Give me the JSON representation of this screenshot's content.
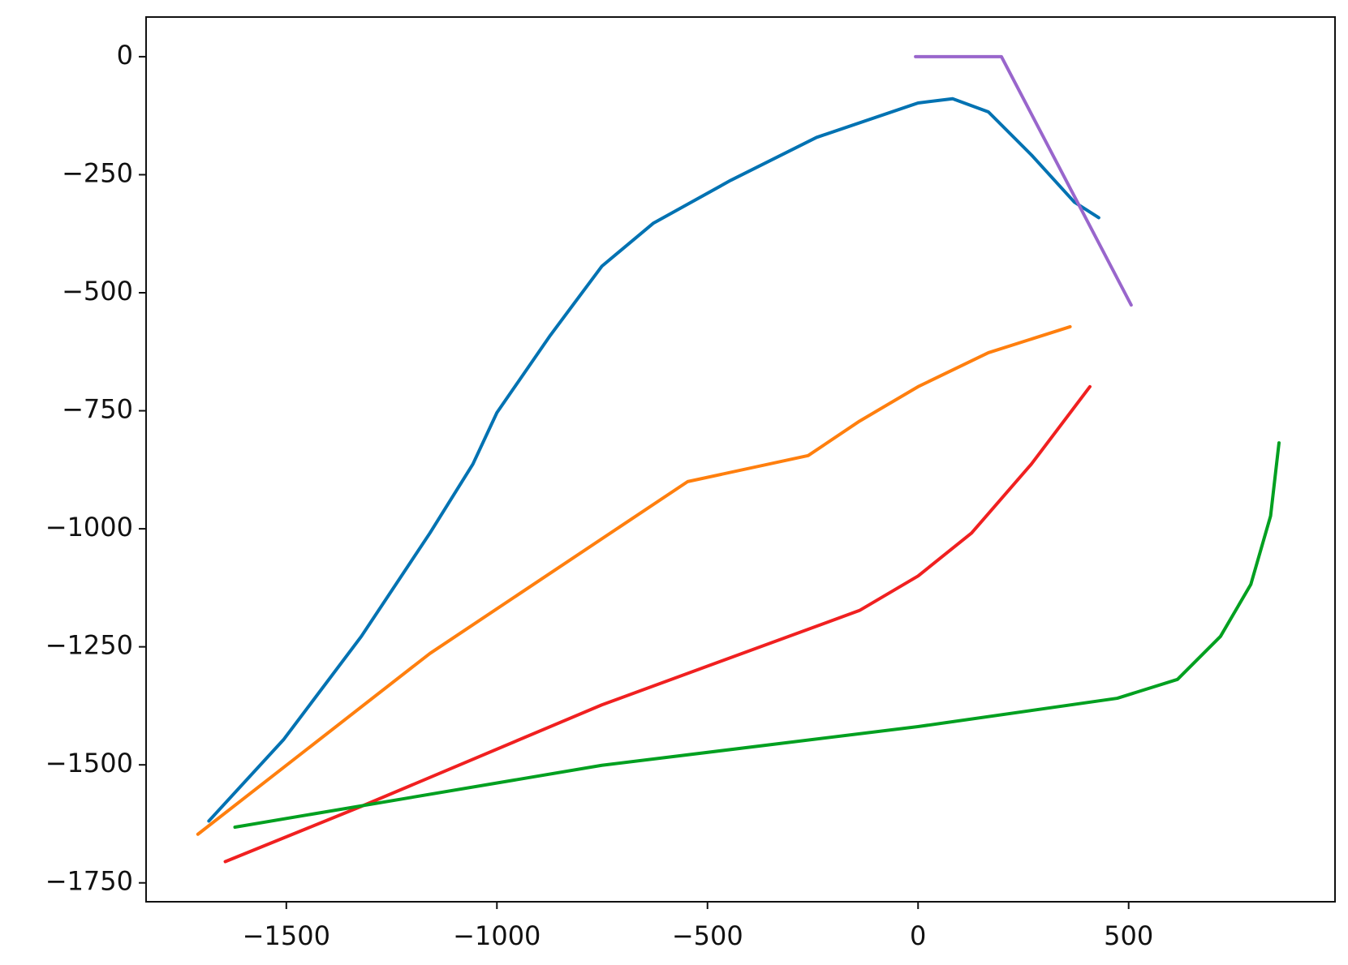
{
  "chart_data": {
    "type": "line",
    "xlim": [
      -1833,
      990
    ],
    "ylim": [
      -1790,
      84
    ],
    "xticks": [
      {
        "value": -1500,
        "label": "−1500"
      },
      {
        "value": -1000,
        "label": "−1000"
      },
      {
        "value": -500,
        "label": "−500"
      },
      0,
      500
    ],
    "yticks": [
      0,
      {
        "value": -250,
        "label": "−250"
      },
      {
        "value": -500,
        "label": "−500"
      },
      {
        "value": -750,
        "label": "−750"
      },
      {
        "value": -1000,
        "label": "−1000"
      },
      {
        "value": -1250,
        "label": "−1250"
      },
      {
        "value": -1500,
        "label": "−1500"
      },
      {
        "value": -1750,
        "label": "−1750"
      }
    ],
    "series": [
      {
        "color": "#0072b2",
        "x": [
          -1684,
          -1506,
          -1322,
          -1159,
          -1057,
          -1000,
          -873,
          -751,
          -629,
          -445,
          -241,
          0,
          82,
          167,
          269,
          371,
          429
        ],
        "values": [
          -1619,
          -1446,
          -1228,
          -1009,
          -863,
          -754,
          -590,
          -444,
          -353,
          -262,
          -171,
          -98,
          -89,
          -117,
          -208,
          -308,
          -341
        ]
      },
      {
        "color": "#ff7f0e",
        "x": [
          -1710,
          -1159,
          -547,
          -261,
          -139,
          0,
          167,
          361
        ],
        "values": [
          -1647,
          -1264,
          -900,
          -845,
          -772,
          -699,
          -627,
          -572
        ]
      },
      {
        "color": "#f02020",
        "x": [
          -1645,
          -1322,
          -751,
          -139,
          0,
          127,
          269,
          408
        ],
        "values": [
          -1705,
          -1588,
          -1373,
          -1173,
          -1100,
          -1009,
          -863,
          -699
        ]
      },
      {
        "color": "#00a020",
        "x": [
          -1622,
          -751,
          0,
          473,
          616,
          718,
          790,
          837,
          857
        ],
        "values": [
          -1632,
          -1501,
          -1419,
          -1359,
          -1319,
          -1228,
          -1118,
          -973,
          -818
        ]
      },
      {
        "color": "#9966cc",
        "x": [
          -6,
          198,
          506
        ],
        "values": [
          0,
          0,
          -526
        ]
      }
    ]
  }
}
